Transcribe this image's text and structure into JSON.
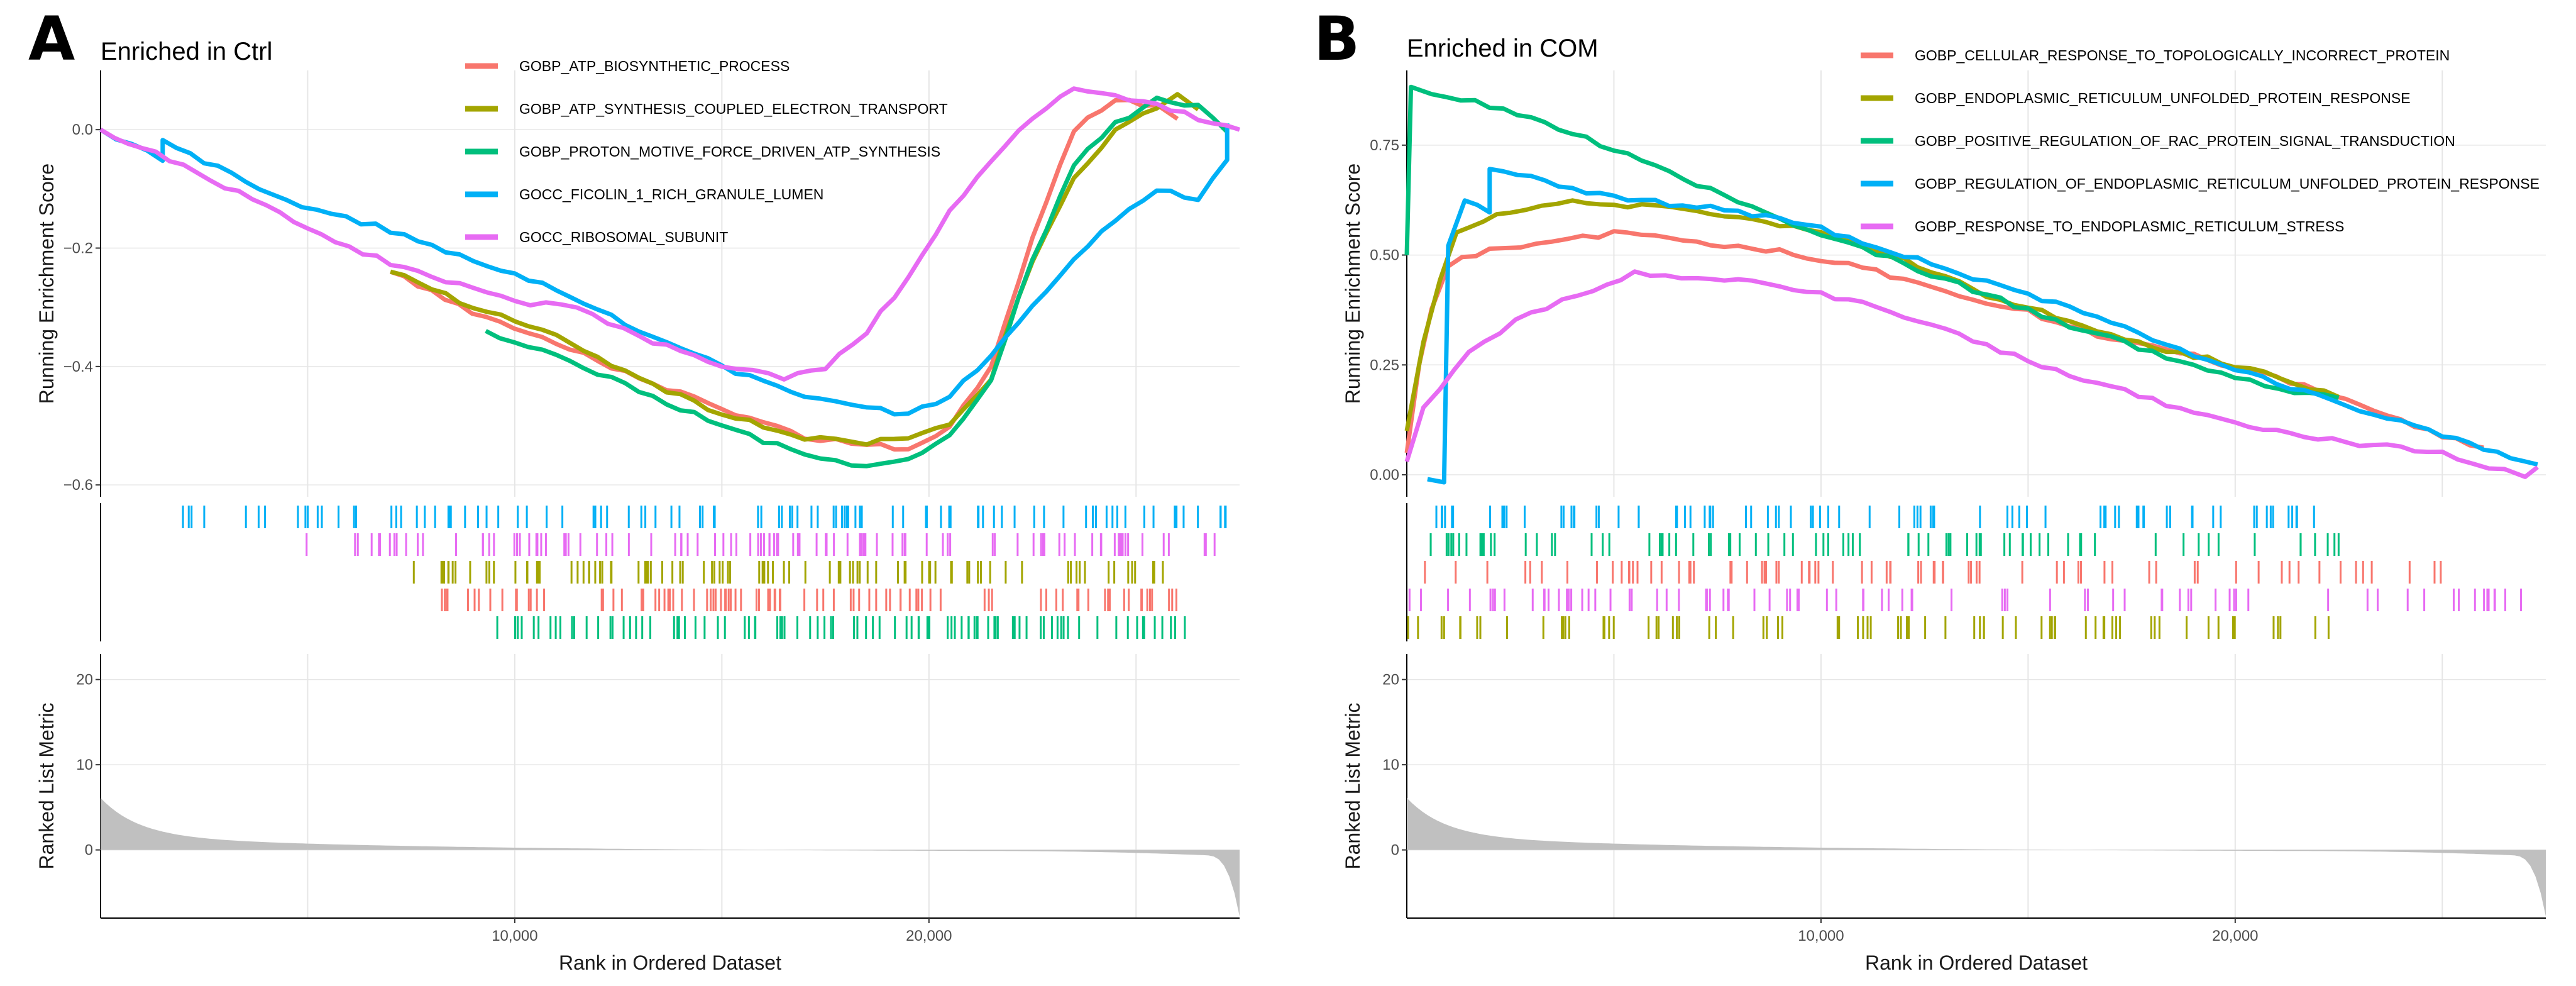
{
  "colors": {
    "red": "#F8766D",
    "olive": "#A3A500",
    "green": "#00BF7D",
    "blue": "#00B0F6",
    "pink": "#E76BF3",
    "grid": "#e6e6e6",
    "metric": "#c0c0c0"
  },
  "chart_data": [
    {
      "type": "line",
      "panel_letter": "A",
      "title": "Enriched in Ctrl",
      "xlabel": "Rank in Ordered Dataset",
      "ylabel_top": "Running Enrichment Score",
      "ylabel_bottom": "Ranked List Metric",
      "xlim": [
        0,
        27500
      ],
      "x_ticks": [
        10000,
        20000
      ],
      "x_tick_labels": [
        "10,000",
        "20,000"
      ],
      "es_ylim": [
        -0.62,
        0.1
      ],
      "es_ticks": [
        0.0,
        -0.2,
        -0.4,
        -0.6
      ],
      "es_tick_labels": [
        "0.0",
        "−0.2",
        "−0.4",
        "−0.6"
      ],
      "metric_ylim": [
        -8,
        23
      ],
      "metric_ticks": [
        0,
        10,
        20
      ],
      "metric_tick_labels": [
        "0",
        "10",
        "20"
      ],
      "legend_position": "top-right",
      "series": [
        {
          "name": "GOBP_ATP_BIOSYNTHETIC_PROCESS",
          "color": "red",
          "points": [
            [
              7000,
              -0.24
            ],
            [
              9300,
              -0.32
            ],
            [
              11000,
              -0.36
            ],
            [
              13000,
              -0.42
            ],
            [
              15000,
              -0.47
            ],
            [
              17000,
              -0.52
            ],
            [
              18500,
              -0.53
            ],
            [
              19500,
              -0.54
            ],
            [
              20500,
              -0.5
            ],
            [
              21500,
              -0.4
            ],
            [
              22500,
              -0.18
            ],
            [
              23500,
              0.0
            ],
            [
              24500,
              0.05
            ],
            [
              25500,
              0.04
            ],
            [
              26000,
              0.02
            ]
          ],
          "hits_row": 3,
          "hits_range": [
            8200,
            26000
          ]
        },
        {
          "name": "GOBP_ATP_SYNTHESIS_COUPLED_ELECTRON_TRANSPORT",
          "color": "olive",
          "points": [
            [
              7000,
              -0.24
            ],
            [
              9000,
              -0.3
            ],
            [
              11000,
              -0.35
            ],
            [
              13000,
              -0.42
            ],
            [
              15000,
              -0.48
            ],
            [
              17000,
              -0.52
            ],
            [
              18500,
              -0.53
            ],
            [
              19500,
              -0.52
            ],
            [
              20500,
              -0.5
            ],
            [
              21500,
              -0.42
            ],
            [
              22500,
              -0.22
            ],
            [
              23500,
              -0.08
            ],
            [
              24500,
              0.0
            ],
            [
              25500,
              0.04
            ],
            [
              26000,
              0.06
            ],
            [
              26500,
              0.03
            ]
          ],
          "hits_row": 2,
          "hits_range": [
            7000,
            26000
          ]
        },
        {
          "name": "GOBP_PROTON_MOTIVE_FORCE_DRIVEN_ATP_SYNTHESIS",
          "color": "green",
          "points": [
            [
              9300,
              -0.34
            ],
            [
              11000,
              -0.38
            ],
            [
              13000,
              -0.44
            ],
            [
              15000,
              -0.5
            ],
            [
              17000,
              -0.55
            ],
            [
              18500,
              -0.57
            ],
            [
              19500,
              -0.56
            ],
            [
              20500,
              -0.52
            ],
            [
              21500,
              -0.42
            ],
            [
              22500,
              -0.22
            ],
            [
              23500,
              -0.06
            ],
            [
              24500,
              0.01
            ],
            [
              25500,
              0.05
            ],
            [
              26500,
              0.04
            ],
            [
              27200,
              0.0
            ]
          ],
          "hits_row": 4,
          "hits_range": [
            9300,
            26200
          ]
        },
        {
          "name": "GOCC_FICOLIN_1_RICH_GRANULE_LUMEN",
          "color": "blue",
          "points": [
            [
              0,
              0.0
            ],
            [
              1500,
              -0.05
            ],
            [
              1500,
              -0.02
            ],
            [
              4500,
              -0.12
            ],
            [
              7000,
              -0.17
            ],
            [
              9000,
              -0.22
            ],
            [
              11000,
              -0.27
            ],
            [
              13000,
              -0.34
            ],
            [
              15000,
              -0.4
            ],
            [
              17000,
              -0.45
            ],
            [
              18500,
              -0.47
            ],
            [
              19500,
              -0.48
            ],
            [
              20500,
              -0.45
            ],
            [
              21500,
              -0.38
            ],
            [
              22500,
              -0.3
            ],
            [
              23500,
              -0.22
            ],
            [
              24500,
              -0.15
            ],
            [
              25500,
              -0.1
            ],
            [
              26500,
              -0.12
            ],
            [
              27200,
              -0.05
            ],
            [
              27200,
              0.01
            ]
          ],
          "hits_row": 0,
          "hits_range": [
            1500,
            27200
          ]
        },
        {
          "name": "GOCC_RIBOSOMAL_SUBUNIT",
          "color": "pink",
          "points": [
            [
              0,
              0.0
            ],
            [
              2000,
              -0.06
            ],
            [
              4000,
              -0.13
            ],
            [
              6000,
              -0.2
            ],
            [
              8000,
              -0.25
            ],
            [
              10000,
              -0.29
            ],
            [
              11500,
              -0.3
            ],
            [
              13000,
              -0.35
            ],
            [
              15000,
              -0.4
            ],
            [
              16500,
              -0.42
            ],
            [
              17500,
              -0.4
            ],
            [
              18500,
              -0.34
            ],
            [
              19500,
              -0.25
            ],
            [
              20500,
              -0.14
            ],
            [
              21500,
              -0.05
            ],
            [
              22500,
              0.02
            ],
            [
              23500,
              0.07
            ],
            [
              24500,
              0.06
            ],
            [
              25500,
              0.04
            ],
            [
              26500,
              0.02
            ],
            [
              27500,
              0.0
            ]
          ],
          "hits_row": 1,
          "hits_range": [
            4700,
            27000
          ]
        }
      ]
    },
    {
      "type": "line",
      "panel_letter": "B",
      "title": "Enriched in COM",
      "xlabel": "Rank in Ordered Dataset",
      "ylabel_top": "Running Enrichment Score",
      "ylabel_bottom": "Ranked List Metric",
      "xlim": [
        0,
        27500
      ],
      "x_ticks": [
        10000,
        20000
      ],
      "x_tick_labels": [
        "10,000",
        "20,000"
      ],
      "es_ylim": [
        -0.05,
        0.92
      ],
      "es_ticks": [
        0.0,
        0.25,
        0.5,
        0.75
      ],
      "es_tick_labels": [
        "0.00",
        "0.25",
        "0.50",
        "0.75"
      ],
      "metric_ylim": [
        -8,
        23
      ],
      "metric_ticks": [
        0,
        10,
        20
      ],
      "metric_tick_labels": [
        "0",
        "10",
        "20"
      ],
      "legend_position": "top-right",
      "series": [
        {
          "name": "GOBP_CELLULAR_RESPONSE_TO_TOPOLOGICALLY_INCORRECT_PROTEIN",
          "color": "red",
          "points": [
            [
              0,
              0.05
            ],
            [
              300,
              0.25
            ],
            [
              600,
              0.38
            ],
            [
              1000,
              0.48
            ],
            [
              2000,
              0.51
            ],
            [
              3500,
              0.53
            ],
            [
              5000,
              0.55
            ],
            [
              7000,
              0.53
            ],
            [
              9000,
              0.51
            ],
            [
              11000,
              0.47
            ],
            [
              13000,
              0.42
            ],
            [
              15000,
              0.37
            ],
            [
              17000,
              0.31
            ],
            [
              19000,
              0.27
            ],
            [
              21000,
              0.22
            ],
            [
              23000,
              0.16
            ],
            [
              25000,
              0.09
            ],
            [
              26000,
              0.06
            ]
          ],
          "hits_row": 2,
          "hits_range": [
            0,
            26000
          ]
        },
        {
          "name": "GOBP_ENDOPLASMIC_RETICULUM_UNFOLDED_PROTEIN_RESPONSE",
          "color": "olive",
          "points": [
            [
              0,
              0.1
            ],
            [
              400,
              0.3
            ],
            [
              800,
              0.44
            ],
            [
              1200,
              0.55
            ],
            [
              2500,
              0.6
            ],
            [
              4000,
              0.62
            ],
            [
              6000,
              0.61
            ],
            [
              8000,
              0.59
            ],
            [
              10000,
              0.55
            ],
            [
              12000,
              0.49
            ],
            [
              14000,
              0.41
            ],
            [
              16000,
              0.35
            ],
            [
              18000,
              0.29
            ],
            [
              20000,
              0.25
            ],
            [
              22500,
              0.18
            ]
          ],
          "hits_row": 4,
          "hits_range": [
            0,
            22500
          ]
        },
        {
          "name": "GOBP_POSITIVE_REGULATION_OF_RAC_PROTEIN_SIGNAL_TRANSDUCTION",
          "color": "green",
          "points": [
            [
              0,
              0.5
            ],
            [
              100,
              0.88
            ],
            [
              600,
              0.87
            ],
            [
              2000,
              0.84
            ],
            [
              4000,
              0.78
            ],
            [
              6000,
              0.7
            ],
            [
              8000,
              0.62
            ],
            [
              10000,
              0.55
            ],
            [
              12000,
              0.48
            ],
            [
              14000,
              0.41
            ],
            [
              16000,
              0.34
            ],
            [
              18000,
              0.28
            ],
            [
              20000,
              0.22
            ],
            [
              22500,
              0.17
            ]
          ],
          "hits_row": 1,
          "hits_range": [
            0,
            22500
          ]
        },
        {
          "name": "GOBP_REGULATION_OF_ENDOPLASMIC_RETICULUM_UNFOLDED_PROTEIN_RESPONSE",
          "color": "blue",
          "points": [
            [
              500,
              -0.01
            ],
            [
              900,
              -0.02
            ],
            [
              1000,
              0.52
            ],
            [
              1400,
              0.62
            ],
            [
              2000,
              0.6
            ],
            [
              2000,
              0.7
            ],
            [
              4000,
              0.65
            ],
            [
              6000,
              0.62
            ],
            [
              8000,
              0.6
            ],
            [
              10000,
              0.56
            ],
            [
              12000,
              0.5
            ],
            [
              14000,
              0.44
            ],
            [
              16000,
              0.38
            ],
            [
              18000,
              0.31
            ],
            [
              20000,
              0.24
            ],
            [
              22000,
              0.18
            ],
            [
              24000,
              0.12
            ],
            [
              26000,
              0.06
            ],
            [
              27300,
              0.02
            ]
          ],
          "hits_row": 0,
          "hits_range": [
            500,
            22000
          ]
        },
        {
          "name": "GOBP_RESPONSE_TO_ENDOPLASMIC_RETICULUM_STRESS",
          "color": "pink",
          "points": [
            [
              0,
              0.03
            ],
            [
              400,
              0.15
            ],
            [
              800,
              0.2
            ],
            [
              1500,
              0.28
            ],
            [
              3000,
              0.37
            ],
            [
              4500,
              0.42
            ],
            [
              5500,
              0.46
            ],
            [
              7000,
              0.45
            ],
            [
              9000,
              0.43
            ],
            [
              11000,
              0.39
            ],
            [
              13000,
              0.33
            ],
            [
              15000,
              0.26
            ],
            [
              17000,
              0.2
            ],
            [
              19000,
              0.14
            ],
            [
              21000,
              0.1
            ],
            [
              23000,
              0.07
            ],
            [
              25000,
              0.05
            ],
            [
              26500,
              0.01
            ],
            [
              27000,
              -0.01
            ],
            [
              27300,
              0.02
            ]
          ],
          "hits_row": 3,
          "hits_range": [
            0,
            27300
          ]
        }
      ]
    }
  ]
}
